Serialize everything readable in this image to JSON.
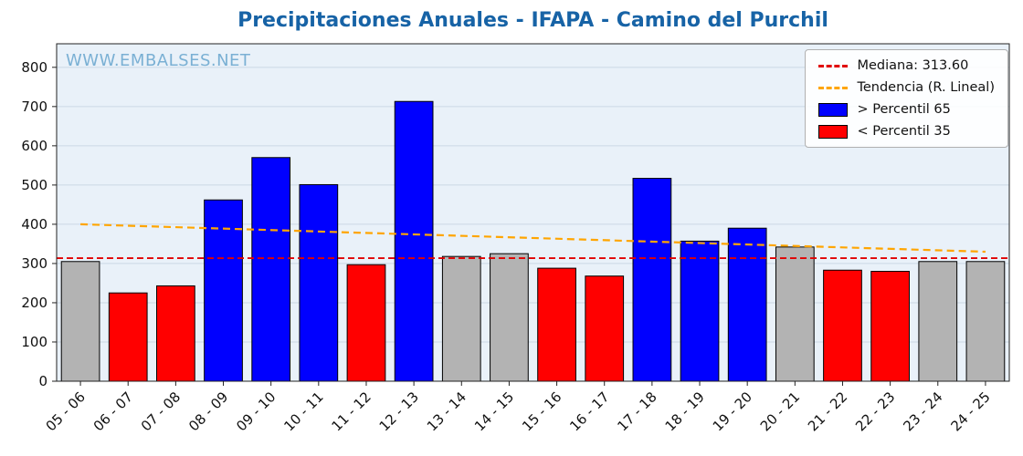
{
  "title": "Precipitaciones Anuales - IFAPA - Camino del Purchil",
  "watermark": "WWW.EMBALSES.NET",
  "legend": {
    "median_label": "Mediana: 313.60",
    "trend_label": "Tendencia (R. Lineal)",
    "p65_label": "> Percentil 65",
    "p35_label": "< Percentil 35"
  },
  "colors": {
    "blue": "#0000ff",
    "red": "#ff0000",
    "gray": "#b3b3b3",
    "median_line": "#e10000",
    "trend_line": "#ffa500",
    "title": "#1763a6",
    "watermark": "#7ab0d4",
    "plot_bg": "#e9f1f9",
    "grid": "#ccd8e4",
    "axis": "#222222",
    "tick_text": "#111111"
  },
  "chart_data": {
    "type": "bar",
    "title": "Precipitaciones Anuales - IFAPA - Camino del Purchil",
    "xlabel": "",
    "ylabel": "",
    "categories": [
      "05 - 06",
      "06 - 07",
      "07 - 08",
      "08 - 09",
      "09 - 10",
      "10 - 11",
      "11 - 12",
      "12 - 13",
      "13 - 14",
      "14 - 15",
      "15 - 16",
      "16 - 17",
      "17 - 18",
      "18 - 19",
      "19 - 20",
      "20 - 21",
      "21 - 22",
      "22 - 23",
      "23 - 24",
      "24 - 25"
    ],
    "values": [
      305,
      225,
      243,
      462,
      570,
      501,
      297,
      713,
      318,
      325,
      288,
      268,
      517,
      357,
      390,
      342,
      283,
      280,
      305,
      305
    ],
    "bar_colors": [
      "gray",
      "red",
      "red",
      "blue",
      "blue",
      "blue",
      "red",
      "blue",
      "gray",
      "gray",
      "red",
      "red",
      "blue",
      "blue",
      "blue",
      "gray",
      "red",
      "red",
      "gray",
      "gray"
    ],
    "median": 313.6,
    "trend": {
      "start": 400,
      "end": 330
    },
    "ylim": [
      0,
      860
    ],
    "yticks": [
      0,
      100,
      200,
      300,
      400,
      500,
      600,
      700,
      800
    ],
    "grid": true,
    "legend_position": "top-right"
  }
}
